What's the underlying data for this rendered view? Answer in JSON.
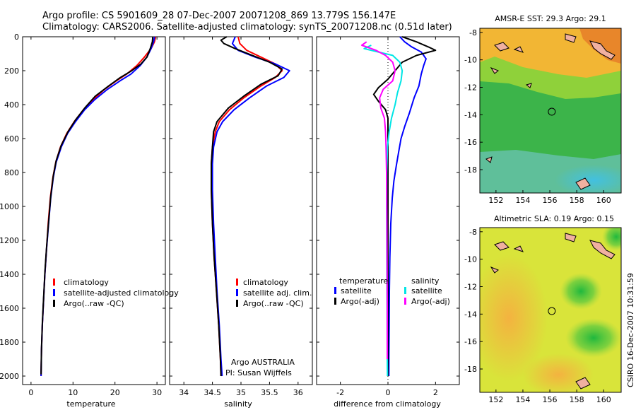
{
  "header": {
    "line1": "Argo profile: CS 5901609_28 07-Dec-2007 20071208_869 13.779S 156.147E",
    "line2": "Climatology: CARS2006. Satellite-adjusted climatology: synTS_20071208.nc (0.51d later)"
  },
  "side_stamp": "CSIRO 16-Dec-2007 10:31:59",
  "colors": {
    "red": "#ff0000",
    "blue": "#0000ff",
    "black": "#000000",
    "cyan": "#00e5e5",
    "magenta": "#ff00ff"
  },
  "chart_data": [
    {
      "type": "line",
      "xlabel": "temperature",
      "ylim": [
        2050,
        0
      ],
      "xlim": [
        -2,
        32
      ],
      "xticks": [
        "0",
        "10",
        "20",
        "30"
      ],
      "xtick_values": [
        0,
        10,
        20,
        30
      ],
      "yticks": [
        "0",
        "200",
        "400",
        "600",
        "800",
        "1000",
        "1200",
        "1400",
        "1600",
        "1800",
        "2000"
      ],
      "ytick_values": [
        0,
        200,
        400,
        600,
        800,
        1000,
        1200,
        1400,
        1600,
        1800,
        2000
      ],
      "legend": [
        "climatology",
        "satellite-adjusted climatology",
        "Argo(..raw -QC)"
      ],
      "series": [
        {
          "name": "climatology",
          "color": "#ff0000",
          "points": [
            [
              29.7,
              0
            ],
            [
              29.4,
              30
            ],
            [
              28.6,
              70
            ],
            [
              27.0,
              120
            ],
            [
              25.2,
              170
            ],
            [
              22.8,
              220
            ],
            [
              20.3,
              260
            ],
            [
              17.5,
              310
            ],
            [
              14.8,
              370
            ],
            [
              12.5,
              430
            ],
            [
              10.3,
              500
            ],
            [
              8.5,
              570
            ],
            [
              7.0,
              650
            ],
            [
              5.9,
              740
            ],
            [
              5.2,
              830
            ],
            [
              4.6,
              950
            ],
            [
              4.1,
              1100
            ],
            [
              3.7,
              1250
            ],
            [
              3.3,
              1400
            ],
            [
              3.0,
              1550
            ],
            [
              2.7,
              1700
            ],
            [
              2.5,
              1850
            ],
            [
              2.4,
              2000
            ]
          ]
        },
        {
          "name": "satellite-adjusted climatology",
          "color": "#0000ff",
          "points": [
            [
              29.4,
              0
            ],
            [
              29.2,
              30
            ],
            [
              28.6,
              70
            ],
            [
              27.6,
              120
            ],
            [
              26.0,
              170
            ],
            [
              23.8,
              220
            ],
            [
              21.2,
              260
            ],
            [
              18.2,
              310
            ],
            [
              15.2,
              370
            ],
            [
              12.8,
              430
            ],
            [
              10.6,
              500
            ],
            [
              8.7,
              570
            ],
            [
              7.2,
              650
            ],
            [
              6.0,
              740
            ],
            [
              5.3,
              830
            ],
            [
              4.7,
              950
            ],
            [
              4.2,
              1100
            ],
            [
              3.7,
              1250
            ],
            [
              3.3,
              1400
            ],
            [
              3.0,
              1550
            ],
            [
              2.7,
              1700
            ],
            [
              2.5,
              1850
            ],
            [
              2.4,
              2000
            ]
          ]
        },
        {
          "name": "Argo(..raw -QC)",
          "color": "#000000",
          "points": [
            [
              29.0,
              0
            ],
            [
              28.9,
              30
            ],
            [
              28.4,
              70
            ],
            [
              27.6,
              120
            ],
            [
              26.2,
              160
            ],
            [
              24.0,
              200
            ],
            [
              21.3,
              240
            ],
            [
              18.5,
              290
            ],
            [
              15.3,
              350
            ],
            [
              12.8,
              420
            ],
            [
              10.6,
              490
            ],
            [
              8.8,
              560
            ],
            [
              7.2,
              640
            ],
            [
              6.0,
              730
            ],
            [
              5.3,
              820
            ],
            [
              4.7,
              940
            ],
            [
              4.2,
              1090
            ],
            [
              3.7,
              1240
            ],
            [
              3.3,
              1390
            ],
            [
              3.0,
              1540
            ],
            [
              2.7,
              1690
            ],
            [
              2.5,
              1840
            ],
            [
              2.4,
              1990
            ]
          ]
        }
      ]
    },
    {
      "type": "line",
      "xlabel": "salinity",
      "ylim": [
        2050,
        0
      ],
      "xlim": [
        33.75,
        36.25
      ],
      "xticks": [
        "34",
        "34.5",
        "35",
        "35.5",
        "36"
      ],
      "xtick_values": [
        34,
        34.5,
        35,
        35.5,
        36
      ],
      "legend": [
        "climatology",
        "satellite adj. clim.",
        "Argo(..raw -QC)"
      ],
      "annotation": [
        "Argo AUSTRALIA",
        "PI: Susan Wijffels"
      ],
      "series": [
        {
          "name": "climatology",
          "color": "#ff0000",
          "points": [
            [
              34.95,
              0
            ],
            [
              34.98,
              40
            ],
            [
              35.1,
              80
            ],
            [
              35.35,
              120
            ],
            [
              35.6,
              160
            ],
            [
              35.72,
              200
            ],
            [
              35.6,
              240
            ],
            [
              35.35,
              290
            ],
            [
              35.05,
              360
            ],
            [
              34.8,
              430
            ],
            [
              34.62,
              500
            ],
            [
              34.55,
              560
            ],
            [
              34.5,
              650
            ],
            [
              34.48,
              750
            ],
            [
              34.48,
              900
            ],
            [
              34.5,
              1100
            ],
            [
              34.53,
              1300
            ],
            [
              34.57,
              1500
            ],
            [
              34.61,
              1700
            ],
            [
              34.64,
              1900
            ],
            [
              34.65,
              2000
            ]
          ]
        },
        {
          "name": "satellite adj. clim.",
          "color": "#0000ff",
          "points": [
            [
              34.9,
              0
            ],
            [
              34.85,
              40
            ],
            [
              34.95,
              80
            ],
            [
              35.25,
              120
            ],
            [
              35.6,
              160
            ],
            [
              35.85,
              200
            ],
            [
              35.75,
              240
            ],
            [
              35.45,
              290
            ],
            [
              35.15,
              360
            ],
            [
              34.88,
              430
            ],
            [
              34.68,
              500
            ],
            [
              34.58,
              560
            ],
            [
              34.52,
              650
            ],
            [
              34.5,
              750
            ],
            [
              34.5,
              900
            ],
            [
              34.52,
              1100
            ],
            [
              34.55,
              1300
            ],
            [
              34.58,
              1500
            ],
            [
              34.62,
              1700
            ],
            [
              34.65,
              1900
            ],
            [
              34.67,
              2000
            ]
          ]
        },
        {
          "name": "Argo(..raw -QC)",
          "color": "#000000",
          "points": [
            [
              34.75,
              0
            ],
            [
              34.65,
              20
            ],
            [
              34.7,
              40
            ],
            [
              34.9,
              70
            ],
            [
              35.2,
              110
            ],
            [
              35.5,
              150
            ],
            [
              35.72,
              190
            ],
            [
              35.65,
              230
            ],
            [
              35.35,
              280
            ],
            [
              35.05,
              350
            ],
            [
              34.78,
              420
            ],
            [
              34.58,
              500
            ],
            [
              34.52,
              560
            ],
            [
              34.5,
              650
            ],
            [
              34.48,
              750
            ],
            [
              34.48,
              900
            ],
            [
              34.5,
              1100
            ],
            [
              34.53,
              1300
            ],
            [
              34.57,
              1500
            ],
            [
              34.61,
              1700
            ],
            [
              34.64,
              1900
            ],
            [
              34.65,
              2000
            ]
          ]
        }
      ]
    },
    {
      "type": "line",
      "xlabel": "difference from climatology",
      "ylim": [
        2050,
        0
      ],
      "xlim": [
        -3,
        3
      ],
      "xticks": [
        "-2",
        "0",
        "2"
      ],
      "xtick_values": [
        -2,
        0,
        2
      ],
      "legend_left_title": "temperature",
      "legend_left": [
        "satellite",
        "Argo(-adj)"
      ],
      "legend_right_title": "salinity",
      "legend_right": [
        "satellite",
        "Argo(-adj)"
      ],
      "series": [
        {
          "name": "temperature satellite",
          "color": "#0000ff",
          "points": [
            [
              0.5,
              0
            ],
            [
              0.7,
              30
            ],
            [
              1.0,
              60
            ],
            [
              1.4,
              90
            ],
            [
              1.6,
              130
            ],
            [
              1.5,
              170
            ],
            [
              1.4,
              220
            ],
            [
              1.3,
              290
            ],
            [
              1.1,
              360
            ],
            [
              0.9,
              450
            ],
            [
              0.7,
              530
            ],
            [
              0.55,
              600
            ],
            [
              0.45,
              680
            ],
            [
              0.35,
              760
            ],
            [
              0.25,
              850
            ],
            [
              0.18,
              950
            ],
            [
              0.12,
              1100
            ],
            [
              0.08,
              1300
            ],
            [
              0.06,
              1500
            ],
            [
              0.05,
              1700
            ],
            [
              0.04,
              1900
            ],
            [
              0.04,
              2000
            ]
          ]
        },
        {
          "name": "temperature Argo(-adj)",
          "color": "#000000",
          "points": [
            [
              0.6,
              0
            ],
            [
              1.2,
              30
            ],
            [
              1.7,
              60
            ],
            [
              2.0,
              80
            ],
            [
              1.2,
              110
            ],
            [
              0.6,
              150
            ],
            [
              0.3,
              200
            ],
            [
              0.0,
              250
            ],
            [
              -0.4,
              300
            ],
            [
              -0.6,
              340
            ],
            [
              -0.4,
              380
            ],
            [
              -0.1,
              430
            ],
            [
              0.0,
              480
            ],
            [
              0.0,
              600
            ],
            [
              0.0,
              800
            ],
            [
              0.0,
              1000
            ],
            [
              0.0,
              1300
            ],
            [
              0.0,
              1600
            ],
            [
              0.0,
              1900
            ],
            [
              0.0,
              2000
            ]
          ]
        },
        {
          "name": "salinity satellite",
          "color": "#00e5e5",
          "points": [
            [
              -0.7,
              50
            ],
            [
              -1.0,
              70
            ],
            [
              -0.4,
              90
            ],
            [
              0.2,
              110
            ],
            [
              0.5,
              150
            ],
            [
              0.6,
              200
            ],
            [
              0.55,
              260
            ],
            [
              0.4,
              330
            ],
            [
              0.3,
              400
            ],
            [
              0.15,
              480
            ],
            [
              0.05,
              560
            ],
            [
              -0.02,
              650
            ],
            [
              -0.05,
              800
            ],
            [
              -0.06,
              1000
            ],
            [
              -0.05,
              1300
            ],
            [
              -0.04,
              1600
            ],
            [
              -0.03,
              1900
            ],
            [
              -0.02,
              2000
            ]
          ]
        },
        {
          "name": "salinity Argo(-adj)",
          "color": "#ff00ff",
          "points": [
            [
              -0.9,
              30
            ],
            [
              -1.1,
              50
            ],
            [
              -0.5,
              80
            ],
            [
              -0.1,
              110
            ],
            [
              0.2,
              150
            ],
            [
              0.3,
              200
            ],
            [
              0.2,
              260
            ],
            [
              -0.2,
              310
            ],
            [
              -0.35,
              360
            ],
            [
              -0.3,
              420
            ],
            [
              -0.15,
              480
            ],
            [
              -0.1,
              560
            ],
            [
              -0.08,
              650
            ],
            [
              -0.06,
              800
            ],
            [
              -0.05,
              1000
            ],
            [
              -0.04,
              1300
            ],
            [
              -0.03,
              1600
            ],
            [
              -0.03,
              1900
            ]
          ]
        }
      ]
    },
    {
      "type": "heatmap",
      "title": "AMSR-E SST: 29.3  Argo: 29.1",
      "xticks": [
        "152",
        "154",
        "156",
        "158",
        "160"
      ],
      "xtick_values": [
        152,
        154,
        156,
        158,
        160
      ],
      "yticks": [
        "-8",
        "-10",
        "-12",
        "-14",
        "-16",
        "-18"
      ],
      "ytick_values": [
        -8,
        -10,
        -12,
        -14,
        -16,
        -18
      ],
      "xlim": [
        150.8,
        161.3
      ],
      "ylim": [
        -19.7,
        -7.7
      ],
      "marker": [
        156.147,
        -13.779
      ]
    },
    {
      "type": "heatmap",
      "title": "Altimetric SLA: 0.19  Argo: 0.15",
      "xticks": [
        "152",
        "154",
        "156",
        "158",
        "160"
      ],
      "xtick_values": [
        152,
        154,
        156,
        158,
        160
      ],
      "yticks": [
        "-8",
        "-10",
        "-12",
        "-14",
        "-16",
        "-18"
      ],
      "ytick_values": [
        -8,
        -10,
        -12,
        -14,
        -16,
        -18
      ],
      "xlim": [
        150.8,
        161.3
      ],
      "ylim": [
        -19.7,
        -7.7
      ],
      "marker": [
        156.147,
        -13.779
      ]
    }
  ]
}
